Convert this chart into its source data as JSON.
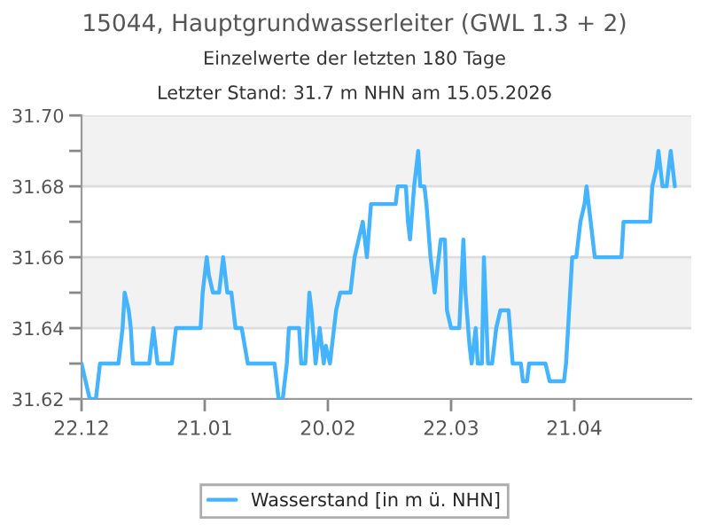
{
  "chart_data": {
    "type": "line",
    "title": "15044, Hauptgrundwasserleiter (GWL 1.3 + 2)",
    "subtitle": "Einzelwerte der letzten 180 Tage",
    "annotations": [
      "Letzter Stand: 31.7 m NHN am 15.05.2026"
    ],
    "x": [
      "2025-12-22",
      "2025-12-23",
      "2025-12-24",
      "2025-12-25T12:00",
      "2025-12-26",
      "2025-12-26T12:00",
      "2025-12-31",
      "2026-01-01",
      "2026-01-01T12:00",
      "2026-01-02T12:00",
      "2026-01-03",
      "2026-01-03T12:00",
      "2026-01-07T12:00",
      "2026-01-08T12:00",
      "2026-01-09",
      "2026-01-09T12:00",
      "2026-01-13",
      "2026-01-13T12:00",
      "2026-01-14",
      "2026-01-20",
      "2026-01-20T12:00",
      "2026-01-21T12:00",
      "2026-01-22",
      "2026-01-23",
      "2026-01-24T12:00",
      "2026-01-25T12:00",
      "2026-01-26T12:00",
      "2026-01-27T12:00",
      "2026-01-28T12:00",
      "2026-01-30",
      "2026-01-31T12:00",
      "2026-02-07",
      "2026-02-08",
      "2026-02-09",
      "2026-02-10",
      "2026-02-10T12:00",
      "2026-02-13",
      "2026-02-13T12:00",
      "2026-02-14T12:00",
      "2026-02-15T12:00",
      "2026-02-16",
      "2026-02-17",
      "2026-02-17T12:00",
      "2026-02-18",
      "2026-02-19",
      "2026-02-19T12:00",
      "2026-02-20T12:00",
      "2026-02-21T12:00",
      "2026-02-22",
      "2026-02-23",
      "2026-02-25T12:00",
      "2026-02-26T12:00",
      "2026-02-27T12:00",
      "2026-02-28T12:00",
      "2026-03-01T12:00",
      "2026-03-02T12:00",
      "2026-03-08T12:00",
      "2026-03-09",
      "2026-03-11",
      "2026-03-11T12:00",
      "2026-03-12",
      "2026-03-13",
      "2026-03-14",
      "2026-03-14T12:00",
      "2026-03-15T12:00",
      "2026-03-16",
      "2026-03-17",
      "2026-03-18",
      "2026-03-19",
      "2026-03-19T12:00",
      "2026-03-20T12:00",
      "2026-03-21",
      "2026-03-22",
      "2026-03-24",
      "2026-03-25",
      "2026-03-25T12:00",
      "2026-03-26T12:00",
      "2026-03-27",
      "2026-03-28",
      "2026-03-28T12:00",
      "2026-03-29T12:00",
      "2026-03-30",
      "2026-03-31",
      "2026-04-01",
      "2026-04-02",
      "2026-04-03",
      "2026-04-05",
      "2026-04-06",
      "2026-04-08",
      "2026-04-08T12:00",
      "2026-04-09T12:00",
      "2026-04-10",
      "2026-04-14",
      "2026-04-15",
      "2026-04-18T12:00",
      "2026-04-19",
      "2026-04-20",
      "2026-04-20T12:00",
      "2026-04-21T12:00",
      "2026-04-22T12:00",
      "2026-04-23T12:00",
      "2026-04-24",
      "2026-04-25",
      "2026-04-26",
      "2026-05-02T12:00",
      "2026-05-03",
      "2026-05-09T12:00",
      "2026-05-10",
      "2026-05-11",
      "2026-05-11T12:00",
      "2026-05-12T12:00",
      "2026-05-13T12:00",
      "2026-05-14T12:00",
      "2026-05-15",
      "2026-05-15T12:00"
    ],
    "series": [
      {
        "name": "Wasserstand [in m ü. NHN]",
        "color": "#44b4ff",
        "values": [
          31.63,
          31.625,
          31.62,
          31.62,
          31.625,
          31.63,
          31.63,
          31.64,
          31.65,
          31.645,
          31.64,
          31.63,
          31.63,
          31.64,
          31.635,
          31.63,
          31.63,
          31.635,
          31.64,
          31.64,
          31.65,
          31.66,
          31.655,
          31.65,
          31.65,
          31.66,
          31.65,
          31.65,
          31.64,
          31.64,
          31.63,
          31.63,
          31.62,
          31.62,
          31.63,
          31.64,
          31.64,
          31.63,
          31.63,
          31.65,
          31.645,
          31.63,
          31.635,
          31.64,
          31.63,
          31.635,
          31.63,
          31.64,
          31.645,
          31.65,
          31.65,
          31.66,
          31.665,
          31.67,
          31.66,
          31.675,
          31.675,
          31.68,
          31.68,
          31.67,
          31.665,
          31.68,
          31.69,
          31.68,
          31.68,
          31.675,
          31.66,
          31.65,
          31.66,
          31.665,
          31.665,
          31.645,
          31.64,
          31.64,
          31.665,
          31.65,
          31.635,
          31.63,
          31.64,
          31.63,
          31.63,
          31.66,
          31.63,
          31.63,
          31.64,
          31.645,
          31.645,
          31.63,
          31.63,
          31.625,
          31.625,
          31.63,
          31.63,
          31.625,
          31.625,
          31.63,
          31.65,
          31.66,
          31.66,
          31.67,
          31.675,
          31.68,
          31.67,
          31.66,
          31.66,
          31.67,
          31.67,
          31.68,
          31.685,
          31.69,
          31.68,
          31.68,
          31.69,
          31.685,
          31.68
        ]
      }
    ],
    "xlim": [
      "2025-12-22",
      "2026-05-19T12:00"
    ],
    "xticks": [
      {
        "value": "2025-12-22",
        "label": "22.12"
      },
      {
        "value": "2026-01-21",
        "label": "21.01"
      },
      {
        "value": "2026-02-20",
        "label": "20.02"
      },
      {
        "value": "2026-03-22",
        "label": "22.03"
      },
      {
        "value": "2026-04-21",
        "label": "21.04"
      }
    ],
    "ylim": [
      31.62,
      31.7
    ],
    "yticks": [
      31.62,
      {
        "value": 31.63,
        "label": null
      },
      31.64,
      {
        "value": 31.65,
        "label": null
      },
      31.66,
      {
        "value": 31.67,
        "label": null
      },
      31.68,
      {
        "value": 31.69,
        "label": null
      },
      "31.70"
    ],
    "bands": [
      {
        "axis": "y",
        "from": 31.64,
        "to": 31.66,
        "color": "#f2f2f2"
      },
      {
        "axis": "y",
        "from": 31.68,
        "to": 31.7,
        "color": "#f2f2f2"
      }
    ],
    "grid": "y",
    "legend": "bottom",
    "line_style": "solid",
    "marker": "none"
  }
}
